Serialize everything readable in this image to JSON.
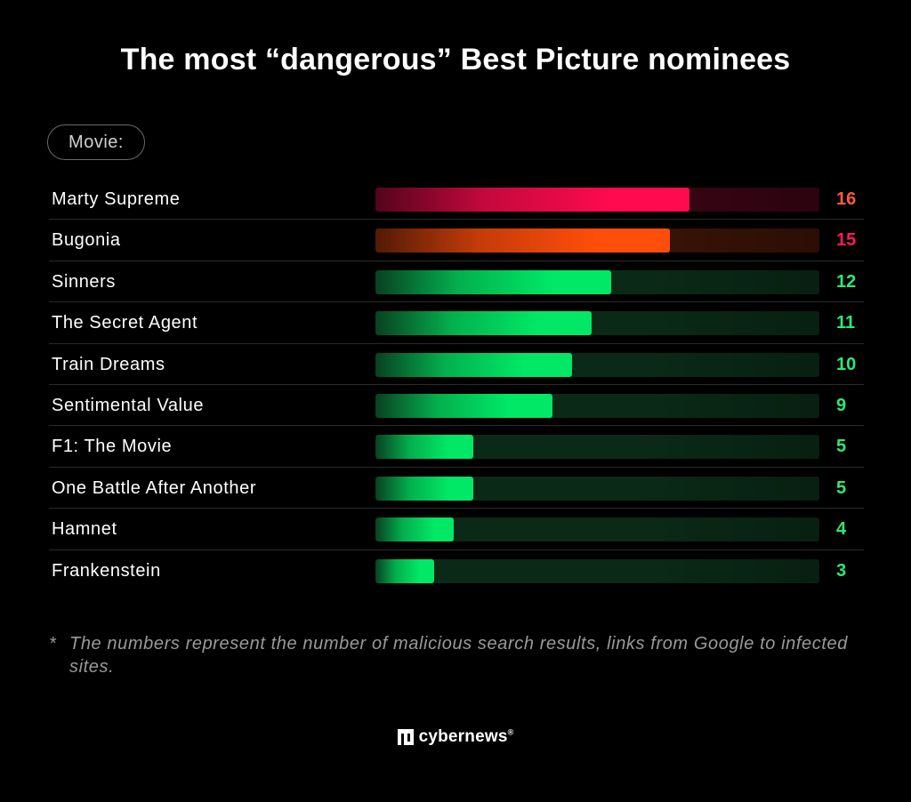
{
  "title": "The most “dangerous” Best Picture nominees",
  "category_header": "Movie:",
  "chart_data": {
    "type": "bar",
    "orientation": "horizontal",
    "categories": [
      "Marty Supreme",
      "Bugonia",
      "Sinners",
      "The Secret Agent",
      "Train Dreams",
      "Sentimental Value",
      "F1: The Movie",
      "One Battle After Another",
      "Hamnet",
      "Frankenstein"
    ],
    "values": [
      16,
      15,
      12,
      11,
      10,
      9,
      5,
      5,
      4,
      3
    ],
    "xlim": [
      0,
      22.6
    ],
    "grid": false,
    "value_colors": [
      "#ff5a3c",
      "#ff1a55",
      "#2ee873",
      "#2ee873",
      "#2ee873",
      "#2ee873",
      "#2ee873",
      "#2ee873",
      "#2ee873",
      "#2ee873"
    ],
    "bar_colors": [
      "#ff0a4e",
      "#ff4d0a",
      "#00e865",
      "#00e865",
      "#00e865",
      "#00e865",
      "#00e865",
      "#00e865",
      "#00e865",
      "#00e865"
    ],
    "track_colors": [
      "#3a0414",
      "#3a1306",
      "#0a2a17",
      "#0a2a17",
      "#0a2a17",
      "#0a2a17",
      "#0a2a17",
      "#0a2a17",
      "#0a2a17",
      "#0a2a17"
    ]
  },
  "footnote": {
    "mark": "*",
    "text": "The numbers represent the number of malicious search results, links from Google to infected sites."
  },
  "brand": {
    "icon": "cybernews-logo-icon",
    "name": "cybernews",
    "registered": "®"
  }
}
